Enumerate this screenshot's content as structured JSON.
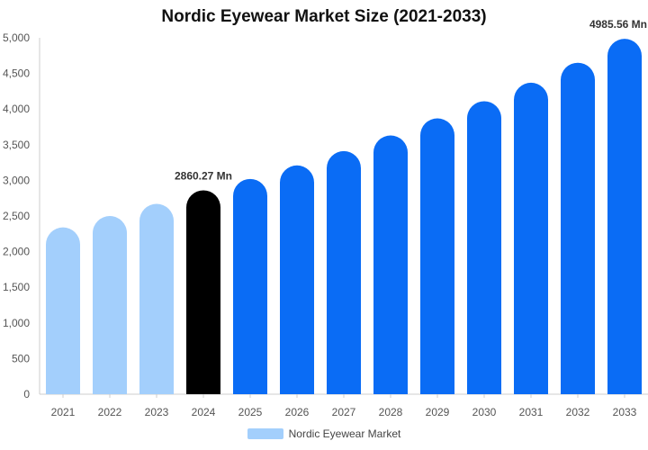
{
  "chart_data": {
    "type": "bar",
    "title": "Nordic Eyewear Market Size (2021-2033)",
    "xlabel": "",
    "ylabel": "",
    "categories": [
      "2021",
      "2022",
      "2023",
      "2024",
      "2025",
      "2026",
      "2027",
      "2028",
      "2029",
      "2030",
      "2031",
      "2032",
      "2033"
    ],
    "series": [
      {
        "name": "Nordic Eyewear Market",
        "values": [
          2340,
          2500,
          2670,
          2860.27,
          3020,
          3210,
          3410,
          3630,
          3870,
          4110,
          4370,
          4650,
          4985.56
        ]
      }
    ],
    "ylim": [
      0,
      5000
    ],
    "yticks": [
      "0",
      "500",
      "1,000",
      "1,500",
      "2,000",
      "2,500",
      "3,000",
      "3,500",
      "4,000",
      "4,500",
      "5,000"
    ],
    "ytick_values": [
      0,
      500,
      1000,
      1500,
      2000,
      2500,
      3000,
      3500,
      4000,
      4500,
      5000
    ],
    "data_labels": [
      {
        "index": 3,
        "text": "2860.27 Mn"
      },
      {
        "index": 12,
        "text": "4985.56 Mn"
      }
    ],
    "bar_colors": {
      "historical": "#a3cffc",
      "current": "#000000",
      "forecast": "#0a6cf5"
    },
    "bar_color_groups": [
      "historical",
      "historical",
      "historical",
      "current",
      "forecast",
      "forecast",
      "forecast",
      "forecast",
      "forecast",
      "forecast",
      "forecast",
      "forecast",
      "forecast"
    ],
    "grid": false,
    "legend": {
      "position": "bottom",
      "label": "Nordic Eyewear Market",
      "color": "#a3cffc"
    }
  }
}
